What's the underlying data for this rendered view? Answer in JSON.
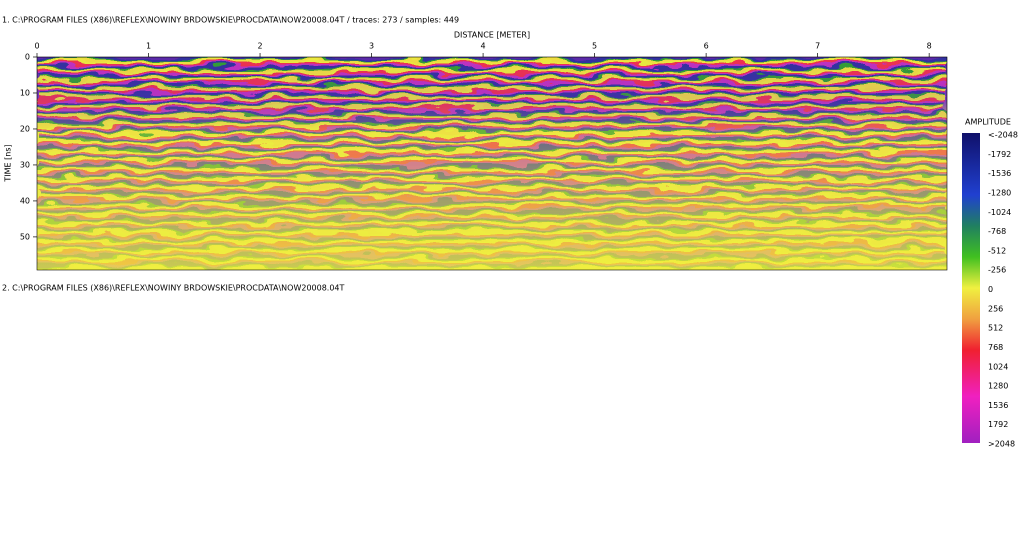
{
  "header": {
    "line1": "1. C:\\PROGRAM FILES (X86)\\REFLEX\\NOWINY BRDOWSKIE\\PROCDATA\\NOW20008.04T  / traces: 273 / samples: 449",
    "line2": "2. C:\\PROGRAM FILES (X86)\\REFLEX\\NOWINY BRDOWSKIE\\PROCDATA\\NOW20008.04T"
  },
  "radargram": {
    "x_label": "DISTANCE [METER]",
    "y_label": "TIME [ns]",
    "xlim": [
      0,
      8.16
    ],
    "xticks": [
      0,
      1,
      2,
      3,
      4,
      5,
      6,
      7,
      8
    ],
    "ylim": [
      0,
      59.2
    ],
    "yticks": [
      0,
      10,
      20,
      30,
      40,
      50
    ]
  },
  "colorbar": {
    "title": "AMPLITUDE",
    "labels": [
      "<-2048",
      -1792,
      -1536,
      -1280,
      -1024,
      -768,
      -512,
      -256,
      0,
      256,
      512,
      768,
      1024,
      1280,
      1536,
      1792,
      ">2048"
    ]
  }
}
